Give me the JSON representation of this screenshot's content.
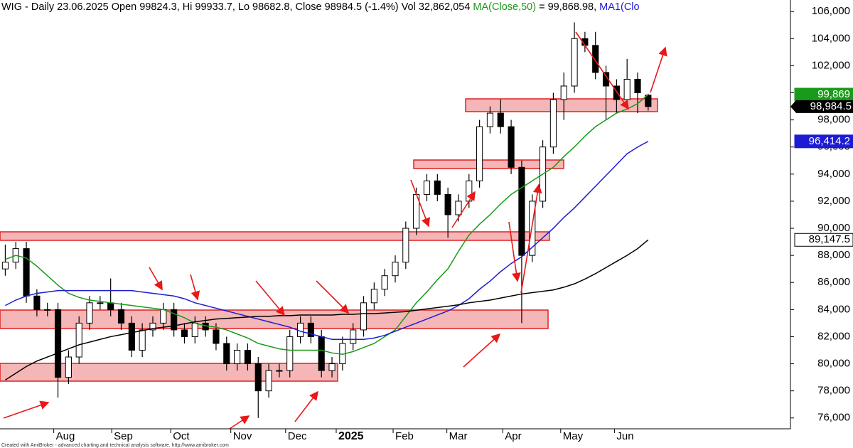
{
  "chart_data": {
    "type": "candlestick",
    "title": [
      {
        "text": "WIG - Daily 23.06.2025 Open 99824.3, Hi 99933.7, Lo 98682.8, Close 98984.5 (-1.4%) Vol 32,862,054",
        "color": "#000000"
      },
      {
        "text": "MA(Close,50)",
        "color": "#1a9a1a"
      },
      {
        "text": "= 99,868.98,",
        "color": "#000000"
      },
      {
        "text": "MA1(Clo",
        "color": "#1c1cd4"
      }
    ],
    "footer": "Created with AmiBroker - advanced charting and technical analysis software. http://www.amibroker.com",
    "categories": [
      null,
      null,
      null,
      null,
      null,
      null,
      null,
      null,
      null,
      null,
      null,
      null,
      null,
      null,
      null,
      null,
      null,
      null,
      null,
      null,
      null,
      null,
      null,
      null,
      null,
      null,
      null,
      null,
      null,
      null,
      null,
      null,
      null,
      null,
      null,
      null,
      null,
      null,
      null,
      null,
      null,
      null,
      null,
      null,
      null,
      null,
      null,
      null,
      null,
      null,
      null,
      null,
      null,
      null,
      null,
      null,
      null,
      null,
      null,
      null,
      null,
      null
    ],
    "open": [
      87000,
      87500,
      88500,
      85000,
      84000,
      84000,
      79000,
      80500,
      83000,
      84500,
      84500,
      84000,
      83000,
      81000,
      82500,
      83000,
      84000,
      82500,
      82000,
      83000,
      82500,
      81500,
      80000,
      81000,
      80000,
      78000,
      79500,
      79500,
      82000,
      83000,
      82000,
      79500,
      80000,
      81500,
      82500,
      84500,
      85500,
      86500,
      87500,
      90000,
      92500,
      93500,
      92500,
      91000,
      92000,
      93500,
      97500,
      98500,
      97500,
      94500,
      88000,
      92000,
      96000,
      99500,
      100500,
      104000,
      103500,
      101500,
      100500,
      99500,
      101000,
      99824.3
    ],
    "high": [
      88800,
      89000,
      89000,
      85500,
      84500,
      84500,
      81000,
      83500,
      85000,
      85000,
      86300,
      84500,
      83500,
      83000,
      83500,
      84500,
      84500,
      83000,
      83500,
      83500,
      83000,
      82000,
      81500,
      81500,
      80500,
      80000,
      80000,
      82500,
      83500,
      83500,
      82500,
      80500,
      82000,
      83000,
      85000,
      86000,
      87000,
      88000,
      90500,
      93000,
      94000,
      94000,
      93000,
      92500,
      94000,
      98000,
      99000,
      99500,
      98000,
      95000,
      92500,
      96500,
      100000,
      101500,
      105200,
      104500,
      104500,
      102000,
      101000,
      102500,
      101500,
      99933.7
    ],
    "low": [
      86500,
      87000,
      84500,
      83500,
      83500,
      77500,
      78500,
      80000,
      82500,
      84000,
      83500,
      82500,
      80500,
      80500,
      82000,
      82500,
      82000,
      81500,
      81500,
      82000,
      81000,
      79500,
      79500,
      79500,
      76000,
      77500,
      79000,
      79000,
      81500,
      81500,
      79000,
      79000,
      79500,
      81000,
      82000,
      84000,
      85000,
      86000,
      87000,
      89500,
      92000,
      92000,
      89300,
      90500,
      91500,
      93000,
      97000,
      97000,
      94000,
      83000,
      87500,
      91500,
      95500,
      98000,
      100000,
      103000,
      101000,
      98000,
      98500,
      99000,
      98500,
      98682.8
    ],
    "close": [
      87500,
      88500,
      85000,
      84000,
      84000,
      79000,
      80500,
      83000,
      84500,
      84500,
      84000,
      83000,
      81000,
      82500,
      83000,
      84000,
      82500,
      82000,
      83000,
      82500,
      81500,
      80000,
      81000,
      80000,
      78000,
      79500,
      79500,
      82000,
      83000,
      82000,
      79500,
      80000,
      81500,
      82500,
      84500,
      85500,
      86500,
      87500,
      90000,
      92500,
      93500,
      92500,
      91000,
      92000,
      93500,
      97500,
      98500,
      97500,
      94500,
      88000,
      92000,
      96000,
      99500,
      100500,
      104000,
      103500,
      101500,
      100500,
      99500,
      101000,
      100000,
      98984.5
    ],
    "close_label": "98,984.5",
    "series": [
      {
        "color": "#1a9a1a",
        "value_label": "99,869",
        "values": [
          87700,
          88000,
          87800,
          87200,
          86500,
          85800,
          85200,
          84900,
          84700,
          84600,
          84500,
          84400,
          84300,
          84200,
          84100,
          84000,
          83700,
          83400,
          83000,
          82800,
          82700,
          82500,
          82200,
          81900,
          81500,
          81300,
          81100,
          81000,
          81000,
          81000,
          81000,
          80800,
          80700,
          80900,
          81200,
          81500,
          82000,
          82500,
          83500,
          84500,
          85300,
          86200,
          87000,
          88300,
          89500,
          90300,
          91000,
          91800,
          92500,
          93000,
          93500,
          94000,
          94500,
          95300,
          96000,
          96800,
          97500,
          98000,
          98500,
          98800,
          99200,
          99869
        ]
      },
      {
        "color": "#1c1cd4",
        "value_label": "96,414.2",
        "values": [
          84300,
          84700,
          85000,
          85200,
          85300,
          85400,
          85400,
          85400,
          85400,
          85400,
          85400,
          85400,
          85400,
          85300,
          85200,
          85100,
          85000,
          84800,
          84500,
          84300,
          84100,
          83900,
          83700,
          83500,
          83300,
          83100,
          82900,
          82700,
          82400,
          82200,
          82000,
          81800,
          81800,
          81800,
          81800,
          81900,
          82100,
          82400,
          82700,
          83000,
          83300,
          83600,
          83900,
          84300,
          84800,
          85500,
          86100,
          86800,
          87400,
          87900,
          88600,
          89300,
          90000,
          90800,
          91500,
          92300,
          93100,
          93900,
          94700,
          95500,
          96000,
          96414.2
        ]
      },
      {
        "color": "#000000",
        "value_label": "89,147.5",
        "values": [
          78800,
          79300,
          79800,
          80200,
          80500,
          80800,
          81100,
          81400,
          81600,
          81800,
          82000,
          82150,
          82300,
          82450,
          82600,
          82700,
          82800,
          82950,
          83100,
          83200,
          83300,
          83350,
          83400,
          83450,
          83500,
          83500,
          83550,
          83550,
          83600,
          83600,
          83600,
          83600,
          83650,
          83650,
          83700,
          83700,
          83750,
          83800,
          83850,
          83950,
          84050,
          84150,
          84250,
          84350,
          84500,
          84600,
          84700,
          84850,
          85000,
          85150,
          85250,
          85350,
          85450,
          85650,
          85900,
          86250,
          86650,
          87100,
          87550,
          88000,
          88500,
          89147.5
        ]
      }
    ],
    "xlim": [
      -0.5,
      74.5
    ],
    "xticks": [
      {
        "value": 4.6,
        "label": "Aug"
      },
      {
        "value": 10.1,
        "label": "Sep"
      },
      {
        "value": 15.7,
        "label": "Oct"
      },
      {
        "value": 21.4,
        "label": "Nov"
      },
      {
        "value": 26.6,
        "label": "Dec"
      },
      {
        "value": 31.4,
        "label": "2025"
      },
      {
        "value": 36.8,
        "label": "Feb"
      },
      {
        "value": 41.9,
        "label": "Mar"
      },
      {
        "value": 47.2,
        "label": "Apr"
      },
      {
        "value": 52.7,
        "label": "May"
      },
      {
        "value": 57.8,
        "label": "Jun"
      }
    ],
    "ylim": [
      75200,
      106850
    ],
    "yticks": [
      {
        "value": 76000,
        "label": "76,000"
      },
      {
        "value": 78000,
        "label": "78,000"
      },
      {
        "value": 80000,
        "label": "80,000"
      },
      {
        "value": 82000,
        "label": "82,000"
      },
      {
        "value": 84000,
        "label": "84,000"
      },
      {
        "value": 86000,
        "label": "86,000"
      },
      {
        "value": 88000,
        "label": "88,000"
      },
      {
        "value": 90000,
        "label": "90,000"
      },
      {
        "value": 92000,
        "label": "92,000"
      },
      {
        "value": 94000,
        "label": "94,000"
      },
      {
        "value": 96000,
        "label": "96,000"
      },
      {
        "value": 98000,
        "label": "98,000"
      },
      {
        "value": 100000,
        "label": "100,000"
      },
      {
        "value": 102000,
        "label": "102,000"
      },
      {
        "value": 104000,
        "label": "104,000"
      },
      {
        "value": 106000,
        "label": "106,000"
      }
    ]
  }
}
